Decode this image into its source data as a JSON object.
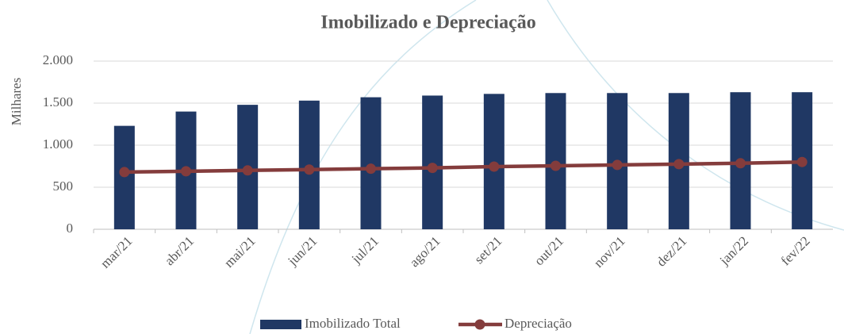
{
  "chart_data": {
    "type": "bar",
    "title": "Imobilizado e Depreciação",
    "y_label": "Milhares",
    "categories": [
      "mar/21",
      "abr/21",
      "mai/21",
      "jun/21",
      "jul/21",
      "ago/21",
      "set/21",
      "out/21",
      "nov/21",
      "dez/21",
      "jan/22",
      "fev/22"
    ],
    "series": [
      {
        "name": "Imobilizado Total",
        "type": "bar",
        "color": "#203864",
        "values": [
          1230,
          1400,
          1480,
          1530,
          1570,
          1590,
          1610,
          1620,
          1620,
          1620,
          1630,
          1630
        ]
      },
      {
        "name": "Depreciação",
        "type": "line",
        "color": "#843c3c",
        "values": [
          680,
          690,
          700,
          710,
          720,
          730,
          745,
          755,
          765,
          775,
          785,
          800
        ]
      }
    ],
    "ylim": [
      0,
      2000
    ],
    "yticks": [
      0,
      500,
      {
        "value": 1000,
        "label": "1.000"
      },
      {
        "value": 1500,
        "label": "1.500"
      },
      {
        "value": 2000,
        "label": "2.000"
      }
    ],
    "grid": true,
    "legend": "bottom"
  }
}
